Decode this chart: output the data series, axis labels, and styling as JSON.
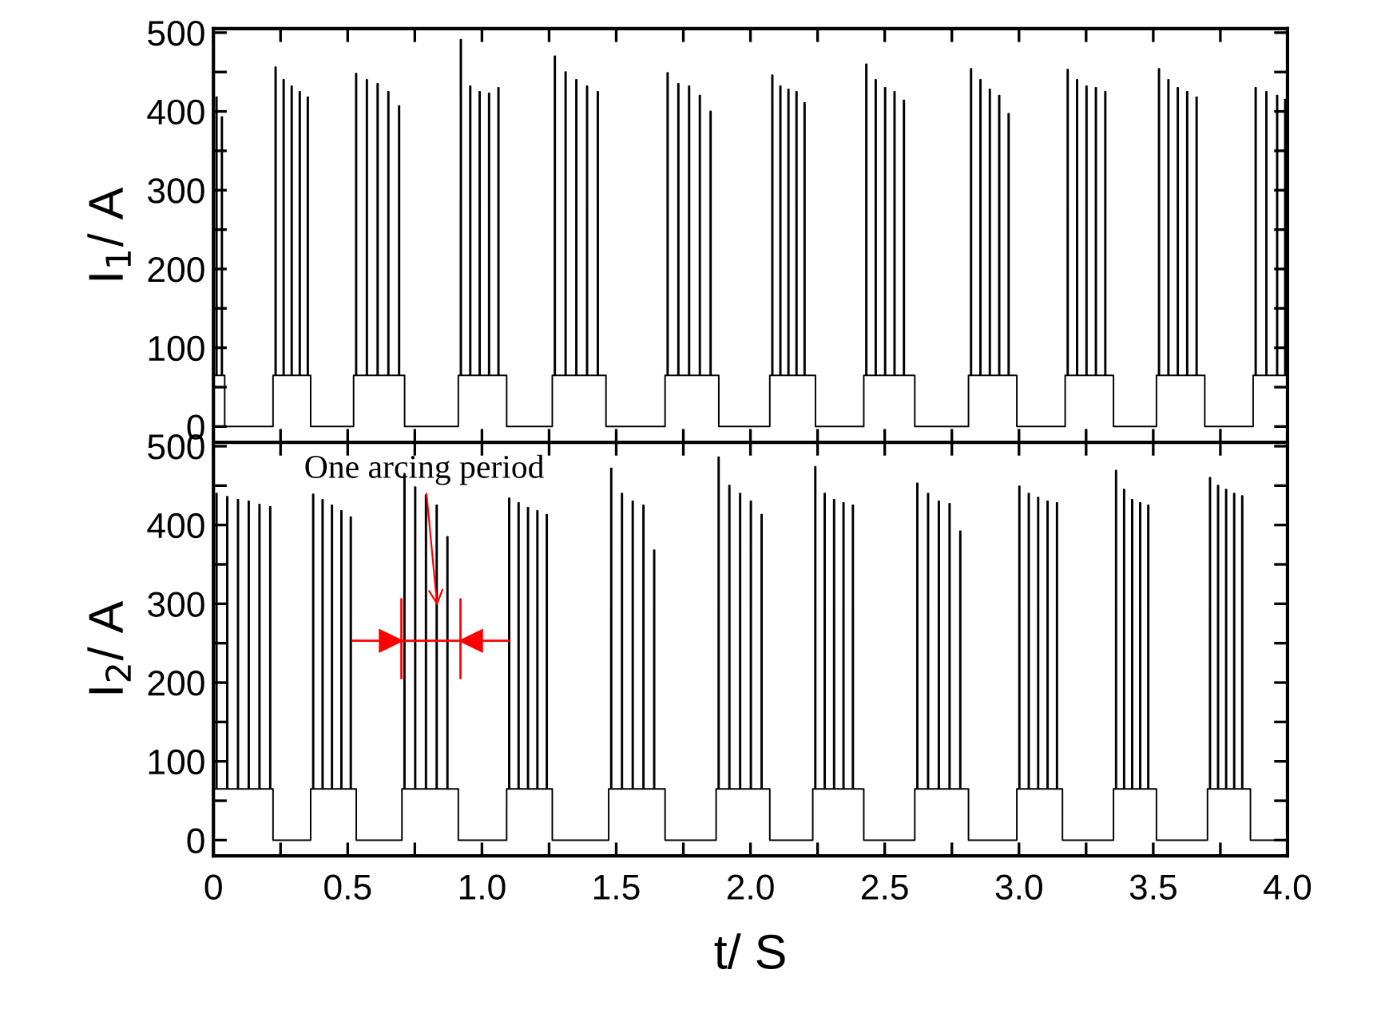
{
  "chart_data": [
    {
      "type": "step",
      "ylabel": "I$_{1}$/ A",
      "xlim": [
        0,
        4
      ],
      "ylim": [
        -20,
        505
      ],
      "xticks": [
        0,
        {
          "value": 0.25,
          "label": null
        },
        0.5,
        {
          "value": 0.75,
          "label": null
        },
        1,
        {
          "value": 1.25,
          "label": null
        },
        1.5,
        {
          "value": 1.75,
          "label": null
        },
        2,
        {
          "value": 2.25,
          "label": null
        },
        2.5,
        {
          "value": 2.75,
          "label": null
        },
        3,
        {
          "value": 3.25,
          "label": null
        },
        3.5,
        {
          "value": 3.75,
          "label": null
        },
        4
      ],
      "yticks": [
        0,
        {
          "value": 50,
          "label": null
        },
        100,
        {
          "value": 150,
          "label": null
        },
        200,
        {
          "value": 250,
          "label": null
        },
        300,
        {
          "value": 350,
          "label": null
        },
        400,
        {
          "value": 450,
          "label": null
        },
        500
      ],
      "tick_labels": "y",
      "grid": false,
      "marker": "none",
      "line_style": "solid",
      "series": [
        {
          "color": "#000000",
          "x": [
            0,
            0.01,
            0.013,
            0.03,
            0.033,
            0.04,
            0.042,
            0.22,
            0.222,
            0.23,
            0.233,
            0.26,
            0.263,
            0.29,
            0.293,
            0.32,
            0.323,
            0.35,
            0.353,
            0.36,
            0.362,
            0.52,
            0.522,
            0.53,
            0.533,
            0.57,
            0.573,
            0.61,
            0.613,
            0.65,
            0.653,
            0.69,
            0.693,
            0.71,
            0.712,
            0.91,
            0.912,
            0.92,
            0.923,
            0.955,
            0.958,
            0.99,
            0.993,
            1.025,
            1.028,
            1.06,
            1.063,
            1.09,
            1.092,
            1.26,
            1.262,
            1.27,
            1.273,
            1.31,
            1.313,
            1.35,
            1.353,
            1.39,
            1.393,
            1.43,
            1.433,
            1.46,
            1.462,
            1.68,
            1.682,
            1.69,
            1.693,
            1.73,
            1.733,
            1.77,
            1.773,
            1.81,
            1.813,
            1.85,
            1.853,
            1.88,
            1.882,
            2.07,
            2.072,
            2.08,
            2.083,
            2.11,
            2.113,
            2.14,
            2.143,
            2.17,
            2.173,
            2.2,
            2.203,
            2.24,
            2.242,
            2.42,
            2.422,
            2.43,
            2.433,
            2.465,
            2.468,
            2.5,
            2.503,
            2.535,
            2.538,
            2.57,
            2.573,
            2.61,
            2.612,
            2.81,
            2.812,
            2.82,
            2.823,
            2.855,
            2.858,
            2.89,
            2.893,
            2.925,
            2.928,
            2.96,
            2.963,
            2.99,
            2.992,
            3.17,
            3.172,
            3.18,
            3.183,
            3.215,
            3.218,
            3.25,
            3.253,
            3.285,
            3.288,
            3.32,
            3.323,
            3.35,
            3.352,
            3.51,
            3.512,
            3.52,
            3.523,
            3.555,
            3.558,
            3.59,
            3.593,
            3.625,
            3.628,
            3.66,
            3.663,
            3.69,
            3.692,
            3.87,
            3.872,
            3.88,
            3.883,
            3.92,
            3.923,
            3.96,
            3.963,
            3.99,
            3.993,
            4.0
          ],
          "values": [
            65,
            418,
            65,
            393,
            65,
            65,
            0,
            0,
            65,
            456,
            65,
            440,
            65,
            432,
            65,
            425,
            65,
            418,
            65,
            65,
            0,
            0,
            65,
            448,
            65,
            440,
            65,
            435,
            65,
            425,
            65,
            407,
            65,
            65,
            0,
            0,
            65,
            491,
            65,
            432,
            65,
            425,
            65,
            423,
            65,
            430,
            65,
            65,
            0,
            0,
            65,
            470,
            65,
            450,
            65,
            440,
            65,
            432,
            65,
            425,
            65,
            65,
            0,
            0,
            65,
            449,
            65,
            435,
            65,
            432,
            65,
            420,
            65,
            400,
            65,
            65,
            0,
            0,
            65,
            446,
            65,
            432,
            65,
            428,
            65,
            425,
            65,
            411,
            65,
            65,
            0,
            0,
            65,
            460,
            65,
            440,
            65,
            430,
            65,
            425,
            65,
            414,
            65,
            65,
            0,
            0,
            65,
            454,
            65,
            440,
            65,
            428,
            65,
            420,
            65,
            397,
            65,
            65,
            0,
            0,
            65,
            453,
            65,
            440,
            65,
            432,
            65,
            430,
            65,
            425,
            65,
            65,
            0,
            0,
            65,
            454,
            65,
            440,
            65,
            430,
            65,
            425,
            65,
            418,
            65,
            65,
            0,
            0,
            65,
            430,
            65,
            425,
            65,
            420,
            65,
            415,
            65,
            65
          ]
        }
      ]
    },
    {
      "type": "step",
      "ylabel": "I$_{2}$/ A",
      "xlabel": "t/ S",
      "xlim": [
        0,
        4
      ],
      "ylim": [
        -20,
        505
      ],
      "xticks": [
        0,
        {
          "value": 0.25,
          "label": null
        },
        {
          "value": 0.5,
          "label": "0.5"
        },
        {
          "value": 0.75,
          "label": null
        },
        {
          "value": 1,
          "label": "1.0"
        },
        {
          "value": 1.25,
          "label": null
        },
        {
          "value": 1.5,
          "label": "1.5"
        },
        {
          "value": 1.75,
          "label": null
        },
        {
          "value": 2,
          "label": "2.0"
        },
        {
          "value": 2.25,
          "label": null
        },
        {
          "value": 2.5,
          "label": "2.5"
        },
        {
          "value": 2.75,
          "label": null
        },
        {
          "value": 3,
          "label": "3.0"
        },
        {
          "value": 3.25,
          "label": null
        },
        {
          "value": 3.5,
          "label": "3.5"
        },
        {
          "value": 3.75,
          "label": null
        },
        {
          "value": 4,
          "label": "4.0"
        }
      ],
      "yticks": [
        0,
        {
          "value": 50,
          "label": null
        },
        100,
        {
          "value": 150,
          "label": null
        },
        200,
        {
          "value": 250,
          "label": null
        },
        300,
        {
          "value": 350,
          "label": null
        },
        400,
        {
          "value": 450,
          "label": null
        },
        500
      ],
      "grid": false,
      "marker": "none",
      "line_style": "solid",
      "annotations": [
        {
          "text": "One arcing period",
          "x": 0.835,
          "y": 292
        }
      ],
      "ref_lines": [
        {
          "axis": "x",
          "value": 0.7,
          "color": "#ff0000"
        },
        {
          "axis": "x",
          "value": 0.92,
          "color": "#ff0000"
        }
      ],
      "series": [
        {
          "color": "#000000",
          "x": [
            0,
            0.01,
            0.013,
            0.05,
            0.053,
            0.09,
            0.093,
            0.13,
            0.133,
            0.17,
            0.173,
            0.21,
            0.213,
            0.22,
            0.222,
            0.36,
            0.362,
            0.37,
            0.373,
            0.405,
            0.408,
            0.44,
            0.443,
            0.475,
            0.478,
            0.51,
            0.513,
            0.53,
            0.532,
            0.7,
            0.702,
            0.71,
            0.713,
            0.75,
            0.753,
            0.79,
            0.793,
            0.83,
            0.833,
            0.87,
            0.873,
            0.91,
            0.912,
            1.09,
            1.092,
            1.1,
            1.103,
            1.135,
            1.138,
            1.17,
            1.173,
            1.205,
            1.208,
            1.24,
            1.243,
            1.26,
            1.262,
            1.47,
            1.472,
            1.48,
            1.483,
            1.52,
            1.523,
            1.56,
            1.563,
            1.6,
            1.603,
            1.64,
            1.643,
            1.68,
            1.682,
            1.87,
            1.872,
            1.88,
            1.883,
            1.92,
            1.923,
            1.96,
            1.963,
            2.0,
            2.003,
            2.04,
            2.043,
            2.07,
            2.072,
            2.23,
            2.232,
            2.24,
            2.243,
            2.275,
            2.278,
            2.31,
            2.313,
            2.345,
            2.348,
            2.38,
            2.383,
            2.42,
            2.422,
            2.61,
            2.612,
            2.62,
            2.623,
            2.66,
            2.663,
            2.7,
            2.703,
            2.74,
            2.743,
            2.78,
            2.783,
            2.81,
            2.812,
            2.99,
            2.992,
            3.0,
            3.003,
            3.035,
            3.038,
            3.07,
            3.073,
            3.105,
            3.108,
            3.14,
            3.143,
            3.16,
            3.162,
            3.35,
            3.352,
            3.36,
            3.363,
            3.39,
            3.393,
            3.42,
            3.423,
            3.45,
            3.453,
            3.48,
            3.483,
            3.51,
            3.512,
            3.7,
            3.702,
            3.71,
            3.713,
            3.74,
            3.743,
            3.77,
            3.773,
            3.8,
            3.803,
            3.83,
            3.833,
            3.86,
            3.862,
            4.0
          ],
          "values": [
            65,
            440,
            65,
            436,
            65,
            432,
            65,
            430,
            65,
            426,
            65,
            423,
            65,
            65,
            0,
            0,
            65,
            439,
            65,
            432,
            65,
            425,
            65,
            418,
            65,
            410,
            65,
            65,
            0,
            0,
            65,
            465,
            65,
            448,
            65,
            438,
            65,
            425,
            65,
            385,
            65,
            65,
            0,
            0,
            65,
            434,
            65,
            428,
            65,
            422,
            65,
            418,
            65,
            413,
            65,
            65,
            0,
            0,
            65,
            472,
            65,
            440,
            65,
            430,
            65,
            425,
            65,
            368,
            65,
            65,
            0,
            0,
            65,
            486,
            65,
            450,
            65,
            440,
            65,
            430,
            65,
            413,
            65,
            65,
            0,
            0,
            65,
            474,
            65,
            440,
            65,
            432,
            65,
            428,
            65,
            425,
            65,
            65,
            0,
            0,
            65,
            453,
            65,
            440,
            65,
            430,
            65,
            427,
            65,
            392,
            65,
            65,
            0,
            0,
            65,
            449,
            65,
            440,
            65,
            435,
            65,
            430,
            65,
            428,
            65,
            65,
            0,
            0,
            65,
            469,
            65,
            445,
            65,
            432,
            65,
            428,
            65,
            425,
            65,
            65,
            0,
            0,
            65,
            460,
            65,
            450,
            65,
            445,
            65,
            440,
            65,
            437,
            65,
            65,
            0,
            0
          ]
        }
      ]
    }
  ]
}
